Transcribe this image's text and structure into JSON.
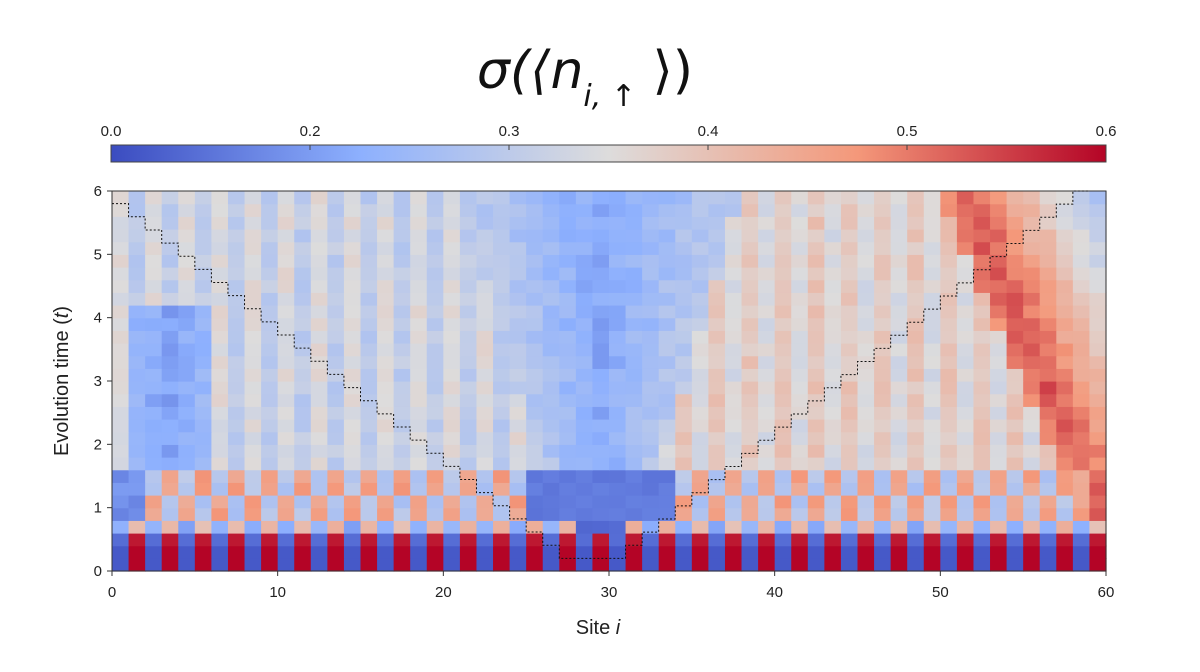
{
  "chart_data": {
    "type": "heatmap",
    "title": {
      "main": "σ(⟨n",
      "sub": "i, ↑",
      "end": " ⟩)"
    },
    "xlabel": {
      "text": "Site ",
      "var": "i"
    },
    "ylabel": {
      "text": "Evolution time (",
      "var": "t",
      "end": ")"
    },
    "xlim": [
      0,
      60
    ],
    "ylim": [
      0,
      6
    ],
    "x_ticks": [
      0,
      10,
      20,
      30,
      40,
      50,
      60
    ],
    "y_ticks": [
      0,
      1,
      2,
      3,
      4,
      5,
      6
    ],
    "colorbar": {
      "ticks": [
        0.0,
        0.2,
        0.3,
        0.4,
        0.5,
        0.6
      ],
      "tick_labels": [
        "0.0",
        "0.2",
        "0.3",
        "0.4",
        "0.5",
        "0.6"
      ],
      "position": "top",
      "colormap": "coolwarm",
      "colors": {
        "low": "#3b4cc0",
        "mid_low": "#8db0fe",
        "mid": "#dddcdc",
        "mid_high": "#f4987a",
        "high": "#b40426"
      }
    },
    "grid": "60 sites × 30 time steps (dt = 0.2)",
    "light_cone": {
      "style": "dashed black",
      "left": {
        "start": [
          0,
          5.8
        ],
        "end": [
          27,
          0.2
        ]
      },
      "bottom": {
        "start": [
          27,
          0.2
        ],
        "end": [
          31,
          0.2
        ]
      },
      "right": {
        "start": [
          31,
          0.2
        ],
        "end": [
          59,
          6.0
        ]
      }
    },
    "features": {
      "initial_checkerboard": "t 0–0.6: alternating ~0.0 (even sites) and ~0.6 (odd sites)",
      "central_blue_region": "sites 25–35, low values ~0.05–0.2 spreading up to t=6",
      "left_blue_band": "sites 0–5 near t 1.5–4, value ~0.1–0.25",
      "right_red_band": "sites 53–60, high values ~0.45–0.55 rising with t"
    }
  }
}
